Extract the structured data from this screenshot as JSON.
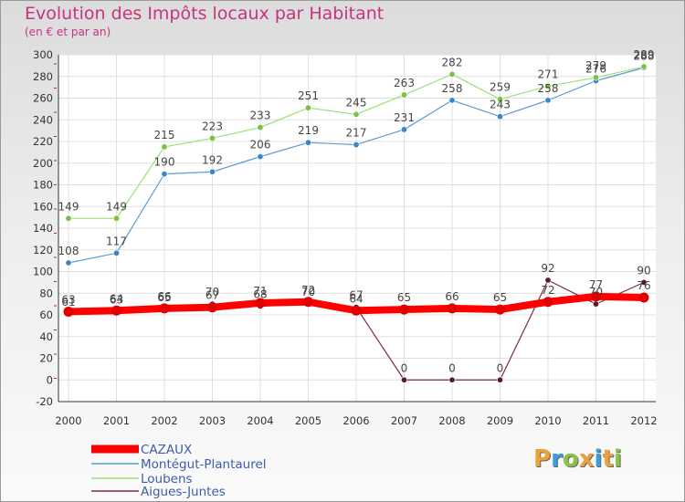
{
  "title": "Evolution des Impôts locaux par Habitant",
  "subtitle": "(en € et par an)",
  "logo": {
    "letters": [
      "P",
      "r",
      "o",
      "x",
      "i",
      "t",
      "i"
    ],
    "colors": [
      "#e8a33d",
      "#3b9ddb",
      "#8bc34a",
      "#e8a33d",
      "#3b9ddb",
      "#e8a33d",
      "#8bc34a"
    ]
  },
  "chart_data": {
    "type": "line",
    "title": "Evolution des Impôts locaux par Habitant",
    "subtitle": "(en € et par an)",
    "xlabel": "",
    "ylabel": "",
    "x": [
      "2000",
      "2001",
      "2002",
      "2003",
      "2004",
      "2005",
      "2006",
      "2007",
      "2008",
      "2009",
      "2010",
      "2011",
      "2012"
    ],
    "ylim": [
      -20,
      300
    ],
    "yticks": [
      -20,
      0,
      20,
      40,
      60,
      80,
      100,
      120,
      140,
      160,
      180,
      200,
      220,
      240,
      260,
      280,
      300
    ],
    "grid": true,
    "legend_position": "bottom-left",
    "series": [
      {
        "name": "CAZAUX",
        "color": "#ff0000",
        "values": [
          63,
          64,
          66,
          67,
          71,
          72,
          64,
          65,
          66,
          65,
          72,
          77,
          76
        ],
        "labels": [
          "63",
          "64",
          "66",
          "67",
          "71",
          "72",
          "64",
          "65",
          "66",
          "65",
          "72",
          "77",
          "76"
        ]
      },
      {
        "name": "Montégut-Plantaurel",
        "color": "#5b9bd5",
        "values": [
          108,
          117,
          190,
          192,
          206,
          219,
          217,
          231,
          258,
          243,
          258,
          276,
          288
        ],
        "labels": [
          "108",
          "117",
          "190",
          "192",
          "206",
          "219",
          "217",
          "231",
          "258",
          "243",
          "258",
          "276",
          "288"
        ]
      },
      {
        "name": "Loubens",
        "color": "#99e07a",
        "values": [
          149,
          149,
          215,
          223,
          233,
          251,
          245,
          263,
          282,
          259,
          271,
          279,
          289
        ],
        "labels": [
          "149",
          "149",
          "215",
          "223",
          "233",
          "251",
          "245",
          "263",
          "282",
          "259",
          "271",
          "279",
          "289"
        ]
      },
      {
        "name": "Aigues-Juntes",
        "color": "#7b2f3b",
        "values": [
          61,
          63,
          65,
          70,
          68,
          70,
          67,
          0,
          0,
          0,
          92,
          70,
          90
        ],
        "labels": [
          "61",
          "63",
          "65",
          "70",
          "68",
          "70",
          "67",
          "0",
          "0",
          "0",
          "92",
          "70",
          "90"
        ]
      }
    ]
  }
}
